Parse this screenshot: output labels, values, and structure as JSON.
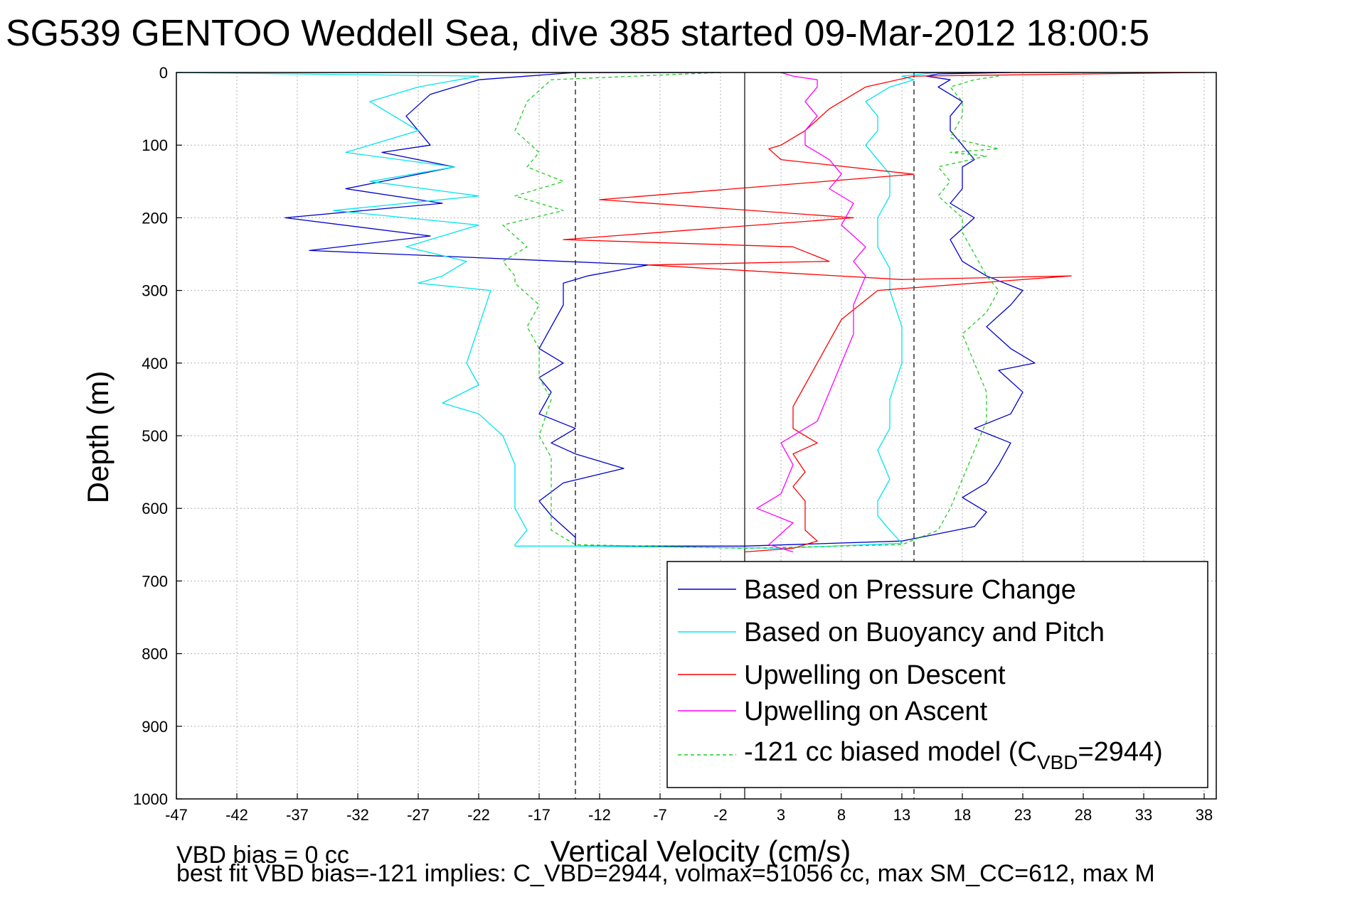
{
  "title": "SG539 GENTOO Weddell Sea, dive 385 started 09-Mar-2012 18:00:5",
  "footer": {
    "line1": "VBD bias = 0 cc",
    "line2": "best fit VBD bias=-121 implies: C_VBD=2944, volmax=51056 cc, max SM_CC=612, max M"
  },
  "legend": {
    "items": [
      {
        "label": "Based on Pressure Change",
        "color": "#0000cc",
        "dash": false
      },
      {
        "label": "Based on Buoyancy and Pitch",
        "color": "#00e5ee",
        "dash": false
      },
      {
        "label": "Upwelling on Descent",
        "color": "#ff0000",
        "dash": false
      },
      {
        "label": "Upwelling on Ascent",
        "color": "#ff00ff",
        "dash": false
      }
    ],
    "model": {
      "prefix": "-121 cc biased model (C",
      "subscript": "VBD",
      "suffix": "=2944)",
      "color": "#22cc22"
    }
  },
  "chart_data": {
    "type": "line",
    "title": "SG539 GENTOO Weddell Sea, dive 385 started 09-Mar-2012 18:00:5",
    "xlabel": "Vertical Velocity (cm/s)",
    "ylabel": "Depth (m)",
    "xlim": [
      -47,
      39
    ],
    "ylim": [
      0,
      1000
    ],
    "y_reversed": true,
    "grid": true,
    "legend_position": "bottom-right",
    "xticks": [
      "-47",
      "-42",
      "-37",
      "-32",
      "-27",
      "-22",
      "-17",
      "-12",
      "-7",
      "-2",
      "3",
      "8",
      "13",
      "18",
      "23",
      "28",
      "33",
      "38"
    ],
    "yticks": [
      "0",
      "100",
      "200",
      "300",
      "400",
      "500",
      "600",
      "700",
      "800",
      "900",
      "1000"
    ],
    "reference_lines": {
      "solid_x": [
        0
      ],
      "dashed_x": [
        -14,
        14
      ]
    },
    "series": [
      {
        "name": "Based on Pressure Change",
        "color": "#0000cc",
        "dash": false,
        "x": [
          -2,
          -14,
          -22,
          -26,
          -28,
          -26,
          -30,
          -24,
          -33,
          -25,
          -38,
          -26,
          -36,
          -8,
          -13,
          -15,
          -15,
          -16,
          -17,
          -15,
          -17,
          -16,
          -17,
          -14,
          -16,
          -14,
          -10,
          -15,
          -17,
          -16,
          -14,
          -14,
          -14,
          0,
          13,
          16,
          19,
          20,
          18,
          20,
          21,
          22,
          19,
          22,
          23,
          21,
          24,
          22,
          20,
          22,
          23,
          20,
          18,
          17,
          19,
          17,
          18,
          18,
          19,
          18,
          17,
          17,
          18,
          16,
          17,
          15,
          16,
          22,
          14
        ],
        "y": [
          0,
          0,
          10,
          30,
          60,
          100,
          110,
          130,
          160,
          180,
          200,
          225,
          245,
          265,
          280,
          290,
          320,
          350,
          380,
          400,
          420,
          440,
          470,
          490,
          510,
          525,
          545,
          565,
          590,
          610,
          640,
          650,
          652,
          652,
          645,
          635,
          625,
          605,
          585,
          565,
          540,
          510,
          490,
          470,
          440,
          410,
          400,
          380,
          350,
          320,
          300,
          280,
          260,
          230,
          200,
          180,
          160,
          130,
          120,
          100,
          80,
          60,
          40,
          20,
          10,
          5,
          2,
          0,
          0
        ]
      },
      {
        "name": "Based on Buoyancy and Pitch",
        "color": "#00e5ee",
        "dash": false,
        "x": [
          -47,
          -22,
          -27,
          -31,
          -27,
          -33,
          -24,
          -31,
          -22,
          -34,
          -22,
          -28,
          -23,
          -25,
          -27,
          -21,
          -22,
          -23,
          -22,
          -25,
          -22,
          -20,
          -19,
          -19,
          -18,
          -19,
          -19,
          -19,
          -14,
          3,
          13,
          12,
          11,
          11,
          12,
          11,
          12,
          12,
          13,
          13,
          12,
          12,
          11,
          11,
          12,
          12,
          11,
          10,
          11,
          11,
          10,
          12,
          14,
          13,
          16
        ],
        "y": [
          0,
          5,
          20,
          40,
          80,
          110,
          130,
          150,
          170,
          190,
          210,
          240,
          260,
          280,
          290,
          300,
          350,
          400,
          430,
          455,
          470,
          500,
          540,
          600,
          630,
          650,
          652,
          652,
          652,
          655,
          648,
          630,
          610,
          590,
          560,
          520,
          490,
          450,
          400,
          350,
          300,
          270,
          240,
          200,
          170,
          140,
          120,
          100,
          80,
          60,
          40,
          20,
          10,
          5,
          0
        ]
      },
      {
        "name": "Upwelling on Descent",
        "color": "#ff0000",
        "dash": false,
        "x": [
          38,
          14,
          10,
          7,
          5,
          3,
          2,
          3,
          14,
          -12,
          9,
          -15,
          4,
          7,
          -8,
          13,
          27,
          11,
          8,
          7,
          6,
          5,
          4,
          4,
          6,
          4,
          5,
          4,
          5,
          5,
          5,
          6,
          4,
          0
        ],
        "y": [
          0,
          5,
          20,
          50,
          80,
          100,
          105,
          120,
          140,
          175,
          200,
          230,
          240,
          260,
          265,
          285,
          280,
          300,
          340,
          370,
          400,
          430,
          460,
          490,
          510,
          525,
          550,
          570,
          590,
          610,
          630,
          645,
          655,
          660
        ]
      },
      {
        "name": "Upwelling on Ascent",
        "color": "#ff00ff",
        "dash": false,
        "x": [
          4,
          2,
          4,
          1,
          3,
          4,
          3,
          6,
          7,
          8,
          9,
          9,
          10,
          9,
          10,
          8,
          9,
          7,
          8,
          7,
          5,
          5,
          6,
          5,
          6,
          6,
          4,
          3
        ],
        "y": [
          660,
          650,
          620,
          600,
          580,
          540,
          510,
          480,
          440,
          400,
          360,
          320,
          280,
          260,
          240,
          210,
          180,
          160,
          140,
          120,
          100,
          80,
          60,
          40,
          20,
          10,
          5,
          0
        ]
      },
      {
        "name": "-121 cc biased model (CVBD=2944)",
        "color": "#22cc22",
        "dash": true,
        "x": [
          -2,
          -16,
          -18,
          -19,
          -17,
          -18,
          -15,
          -19,
          -15,
          -20,
          -18,
          -20,
          -19,
          -19,
          -17,
          -18,
          -17,
          -17,
          -16,
          -17,
          -16,
          -16,
          -16,
          -16,
          -14,
          0,
          13,
          16,
          17,
          18,
          19,
          20,
          20,
          19,
          18,
          20,
          21,
          20,
          19,
          18,
          18,
          16,
          17,
          16,
          20,
          17,
          21,
          17,
          18,
          18,
          17,
          19,
          21
        ],
        "y": [
          0,
          10,
          40,
          80,
          110,
          130,
          150,
          170,
          190,
          210,
          240,
          260,
          280,
          290,
          320,
          350,
          380,
          420,
          450,
          500,
          530,
          560,
          600,
          630,
          650,
          655,
          650,
          630,
          600,
          560,
          520,
          480,
          440,
          400,
          360,
          330,
          300,
          280,
          250,
          220,
          200,
          170,
          150,
          130,
          115,
          110,
          105,
          90,
          60,
          40,
          20,
          10,
          5
        ]
      }
    ]
  }
}
